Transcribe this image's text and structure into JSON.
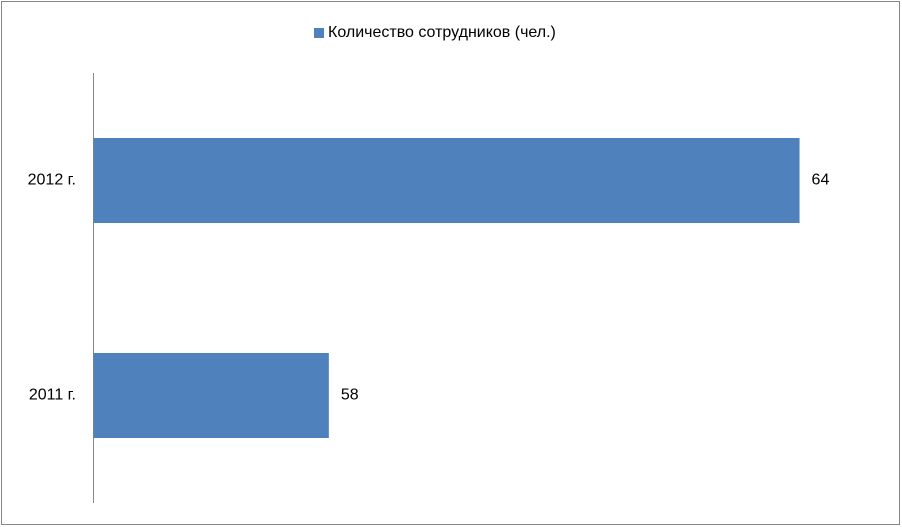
{
  "chart_data": {
    "type": "hbar",
    "categories": [
      "2011 г.",
      "2012 г."
    ],
    "series": [
      {
        "name": "Количество сотрудников (чел.)",
        "color": "#4f81bd",
        "values": [
          58,
          64
        ]
      }
    ],
    "xlim": [
      55,
      65
    ],
    "legend": "top",
    "data_labels": true
  }
}
